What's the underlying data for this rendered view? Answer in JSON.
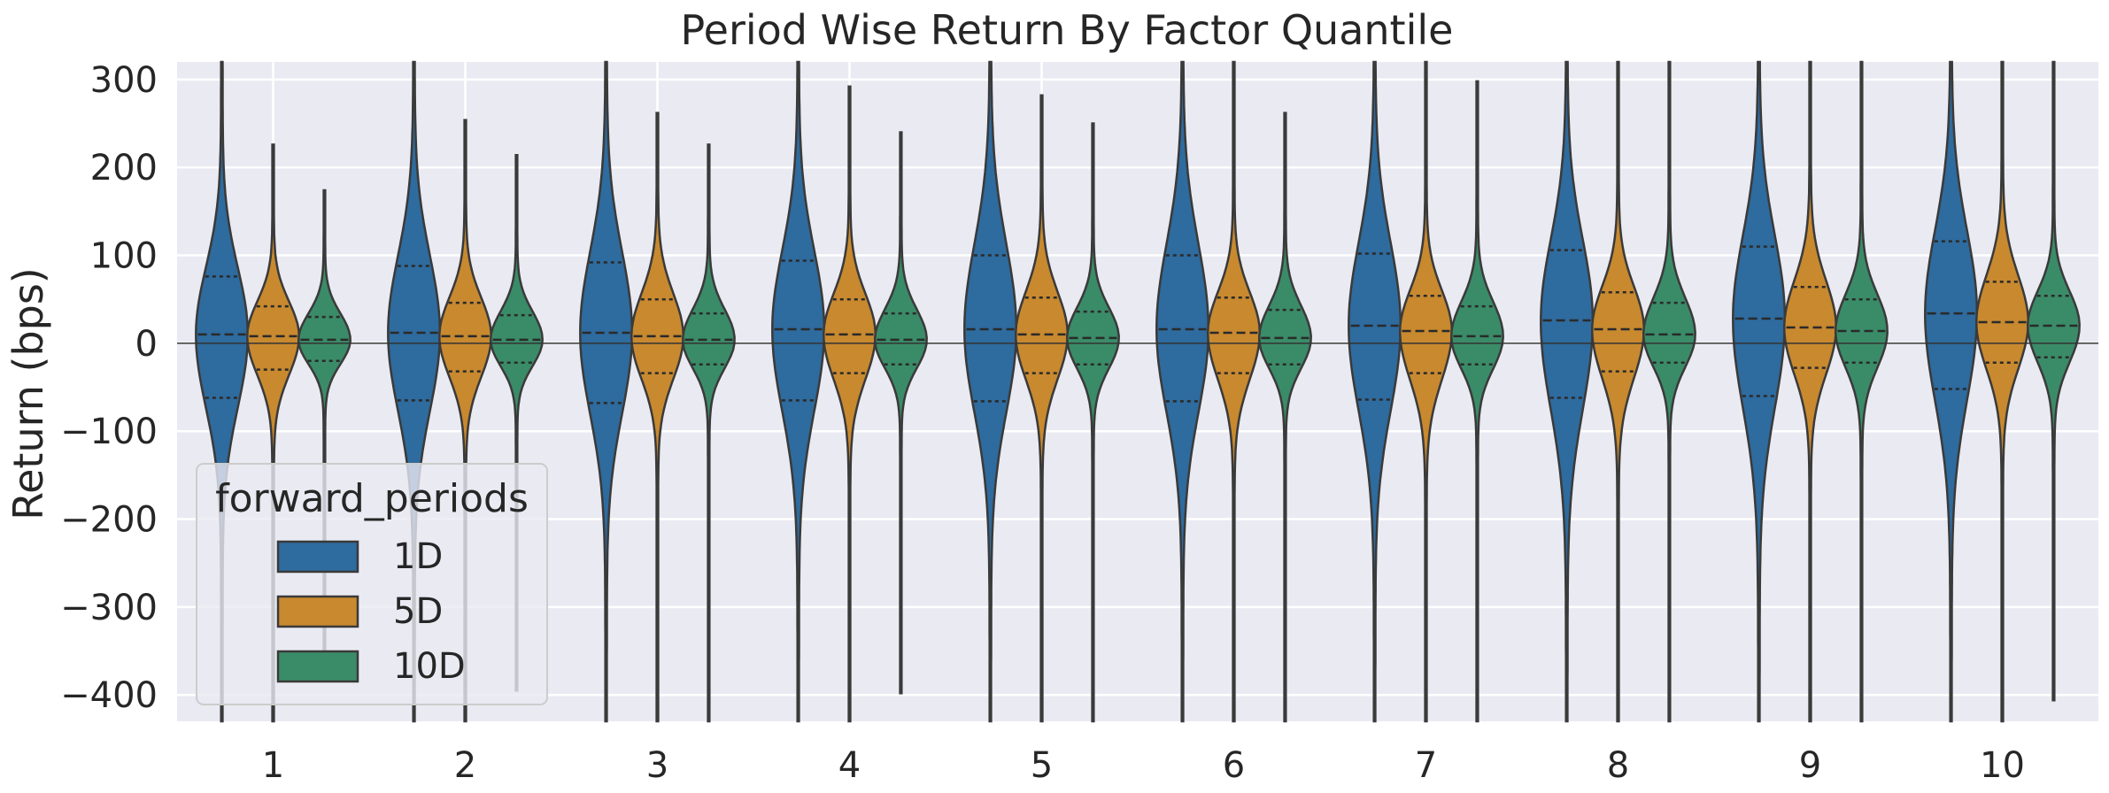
{
  "chart_data": {
    "type": "violin",
    "title": "Period Wise Return By Factor Quantile",
    "xlabel": "",
    "ylabel": "Return (bps)",
    "ylim": [
      -430,
      320
    ],
    "yticks": [
      300,
      200,
      100,
      0,
      -100,
      -200,
      -300,
      -400
    ],
    "ytick_labels": [
      "300",
      "200",
      "100",
      "0",
      "−100",
      "−200",
      "−300",
      "−400"
    ],
    "categories": [
      "1",
      "2",
      "3",
      "4",
      "5",
      "6",
      "7",
      "8",
      "9",
      "10"
    ],
    "grid": true,
    "zero_line": true,
    "legend": {
      "title": "forward_periods",
      "placement": "lower-left",
      "entries": [
        "1D",
        "5D",
        "10D"
      ]
    },
    "series": [
      {
        "name": "1D",
        "color": "#2e6b9e",
        "min": [
          -430,
          -430,
          -430,
          -430,
          -430,
          -430,
          -430,
          -430,
          -430,
          -430
        ],
        "max": [
          320,
          320,
          320,
          320,
          320,
          320,
          320,
          320,
          320,
          320
        ],
        "q1": [
          -62,
          -65,
          -68,
          -65,
          -66,
          -66,
          -64,
          -62,
          -60,
          -52
        ],
        "median": [
          10,
          12,
          12,
          16,
          16,
          16,
          20,
          26,
          28,
          34
        ],
        "q3": [
          76,
          88,
          92,
          94,
          100,
          100,
          102,
          106,
          110,
          116
        ]
      },
      {
        "name": "5D",
        "color": "#c8892f",
        "min": [
          -430,
          -430,
          -430,
          -430,
          -430,
          -430,
          -430,
          -430,
          -430,
          -430
        ],
        "max": [
          226,
          254,
          262,
          292,
          282,
          320,
          320,
          320,
          320,
          320
        ],
        "q1": [
          -30,
          -32,
          -34,
          -34,
          -34,
          -34,
          -34,
          -32,
          -28,
          -22
        ],
        "median": [
          8,
          8,
          8,
          10,
          10,
          12,
          14,
          16,
          18,
          24
        ],
        "q3": [
          42,
          46,
          50,
          50,
          52,
          52,
          54,
          58,
          64,
          70
        ]
      },
      {
        "name": "10D",
        "color": "#3a8c68",
        "min": [
          -360,
          -395,
          -430,
          -398,
          -430,
          -430,
          -430,
          -430,
          -430,
          -406
        ],
        "max": [
          174,
          214,
          226,
          240,
          250,
          262,
          298,
          320,
          320,
          320
        ],
        "q1": [
          -20,
          -22,
          -24,
          -24,
          -24,
          -24,
          -24,
          -22,
          -22,
          -16
        ],
        "median": [
          4,
          4,
          4,
          4,
          6,
          6,
          8,
          10,
          14,
          20
        ],
        "q3": [
          30,
          32,
          34,
          34,
          36,
          38,
          42,
          46,
          50,
          54
        ]
      }
    ]
  }
}
